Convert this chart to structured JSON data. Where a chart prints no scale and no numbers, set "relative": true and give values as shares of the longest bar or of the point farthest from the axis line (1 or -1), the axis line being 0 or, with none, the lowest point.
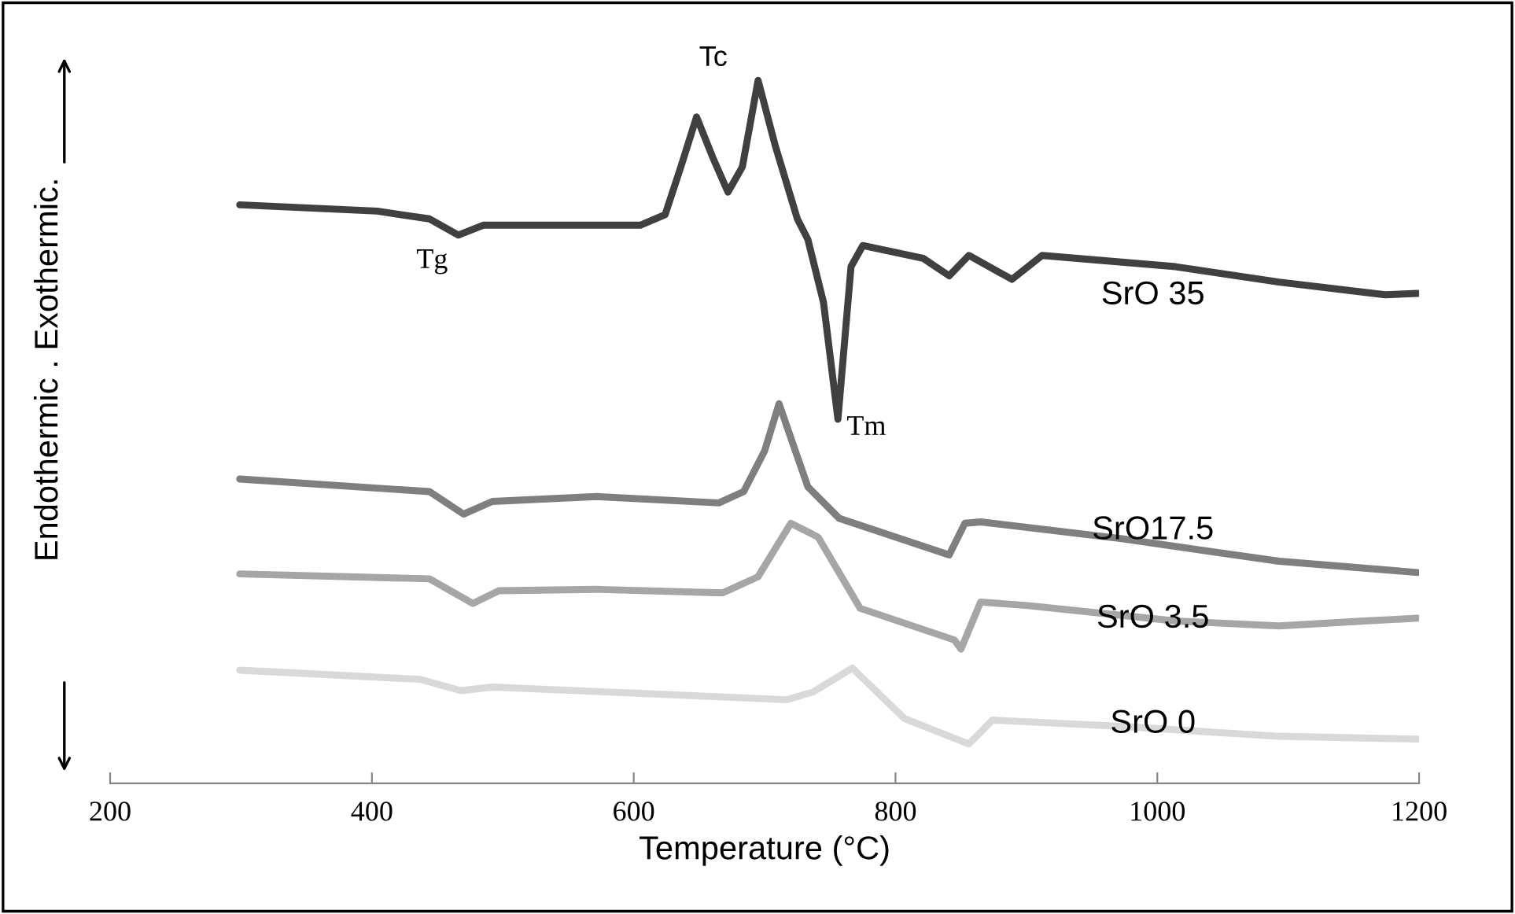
{
  "chart_data": {
    "type": "line",
    "relative": true,
    "xlabel": "Temperature (°C)",
    "ylabel": "Endothermic . Exothermic.",
    "xlim": [
      200,
      1200
    ],
    "xticks": [
      200,
      400,
      600,
      800,
      1000,
      1200
    ],
    "tick_labels": "x",
    "grid": false,
    "legend": false,
    "marker": "none",
    "line_style": "solid",
    "series": [
      {
        "name": "SrO 35",
        "color": "#404040",
        "x": [
          299,
          404,
          444,
          466,
          485,
          605,
          624,
          636,
          648,
          660,
          672,
          683,
          695,
          708,
          725,
          733,
          745,
          756,
          766,
          775,
          821,
          841,
          856,
          889,
          912,
          1014,
          1093,
          1174,
          1199
        ],
        "values": [
          0.823,
          0.814,
          0.803,
          0.78,
          0.794,
          0.794,
          0.809,
          0.877,
          0.948,
          0.892,
          0.841,
          0.877,
          1.0,
          0.908,
          0.803,
          0.774,
          0.684,
          0.518,
          0.735,
          0.765,
          0.747,
          0.722,
          0.751,
          0.717,
          0.751,
          0.735,
          0.713,
          0.695,
          0.697
        ]
      },
      {
        "name": "SrO17.5",
        "color": "#7f7f7f",
        "x": [
          299,
          444,
          470,
          492,
          572,
          665,
          684,
          700,
          711,
          733,
          757,
          841,
          853,
          865,
          973,
          1093,
          1199
        ],
        "values": [
          0.433,
          0.415,
          0.383,
          0.401,
          0.408,
          0.399,
          0.415,
          0.473,
          0.54,
          0.422,
          0.377,
          0.325,
          0.37,
          0.372,
          0.348,
          0.316,
          0.3
        ]
      },
      {
        "name": "SrO 3.5",
        "color": "#a6a6a6",
        "x": [
          299,
          444,
          477,
          497,
          572,
          668,
          695,
          720,
          737,
          741,
          773,
          845,
          850,
          865,
          901,
          1014,
          1093,
          1158,
          1199
        ],
        "values": [
          0.298,
          0.291,
          0.256,
          0.274,
          0.276,
          0.271,
          0.294,
          0.37,
          0.354,
          0.35,
          0.249,
          0.204,
          0.191,
          0.258,
          0.253,
          0.231,
          0.224,
          0.231,
          0.235
        ]
      },
      {
        "name": "SrO 0",
        "color": "#d9d9d9",
        "x": [
          299,
          437,
          468,
          492,
          605,
          717,
          737,
          767,
          807,
          856,
          874,
          973,
          1093,
          1199
        ],
        "values": [
          0.161,
          0.148,
          0.132,
          0.137,
          0.128,
          0.119,
          0.13,
          0.164,
          0.092,
          0.056,
          0.09,
          0.081,
          0.067,
          0.063
        ]
      }
    ],
    "annotations": [
      {
        "text": "Tc",
        "x": 695,
        "y": 1.0
      },
      {
        "text": "Tg",
        "x": 466,
        "y": 0.78
      },
      {
        "text": "Tm",
        "x": 756,
        "y": 0.518
      }
    ]
  }
}
